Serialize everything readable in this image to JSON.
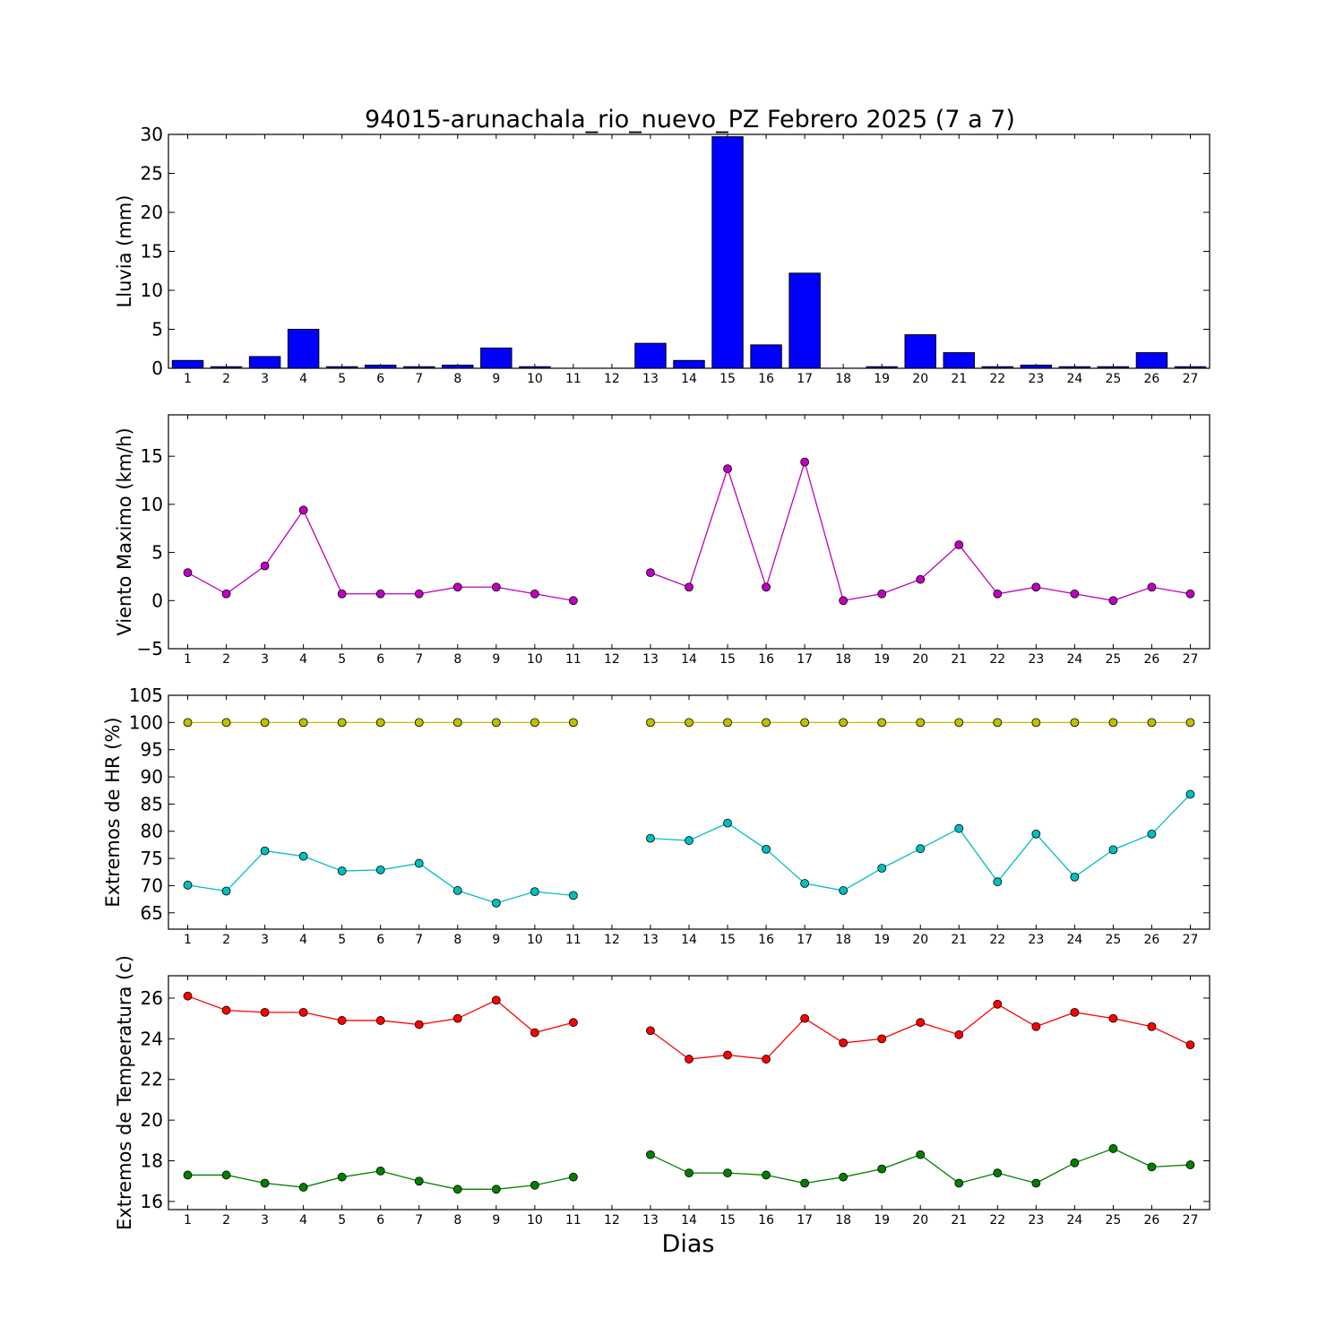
{
  "title": "94015-arunachala_rio_nuevo_PZ Febrero 2025  (7 a 7)",
  "xlabel": "Dias",
  "colors": {
    "rain": "#0000ff",
    "wind": "#bf00bf",
    "hr_max": "#bfbf00",
    "hr_min": "#00bfbf",
    "temp_max": "#ff0000",
    "temp_min": "#008000"
  },
  "chart_data": [
    {
      "type": "bar",
      "ylabel": "Lluvia (mm)",
      "ylim": [
        0,
        30
      ],
      "yticks": [
        0,
        5,
        10,
        15,
        20,
        25,
        30
      ],
      "categories": [
        1,
        2,
        3,
        4,
        5,
        6,
        7,
        8,
        9,
        10,
        11,
        12,
        13,
        14,
        15,
        16,
        17,
        18,
        19,
        20,
        21,
        22,
        23,
        24,
        25,
        26,
        27
      ],
      "values": [
        1.0,
        0.2,
        1.5,
        5.0,
        0.2,
        0.4,
        0.2,
        0.4,
        2.6,
        0.2,
        0,
        0,
        3.2,
        1.0,
        29.7,
        3.0,
        12.2,
        0,
        0.2,
        4.3,
        2.0,
        0.2,
        0.4,
        0.2,
        0.2,
        2.0,
        0.2
      ]
    },
    {
      "type": "line",
      "ylabel": "Viento Maximo (km/h)",
      "ylim": [
        -5,
        19.3
      ],
      "yticks": [
        -5,
        0,
        5,
        10,
        15
      ],
      "x": [
        1,
        2,
        3,
        4,
        5,
        6,
        7,
        8,
        9,
        10,
        11,
        12,
        13,
        14,
        15,
        16,
        17,
        18,
        19,
        20,
        21,
        22,
        23,
        24,
        25,
        26,
        27
      ],
      "series": [
        {
          "values": [
            2.9,
            0.7,
            3.6,
            9.4,
            0.7,
            0.7,
            0.7,
            1.4,
            1.4,
            0.7,
            0.0,
            null,
            2.9,
            1.4,
            13.7,
            1.4,
            14.4,
            0.0,
            0.7,
            2.2,
            5.8,
            0.7,
            1.4,
            0.7,
            0.0,
            1.4,
            0.7
          ]
        }
      ]
    },
    {
      "type": "line",
      "ylabel": "Extremos de HR (%)",
      "ylim": [
        62,
        105
      ],
      "yticks": [
        65,
        70,
        75,
        80,
        85,
        90,
        95,
        100,
        105
      ],
      "x": [
        1,
        2,
        3,
        4,
        5,
        6,
        7,
        8,
        9,
        10,
        11,
        12,
        13,
        14,
        15,
        16,
        17,
        18,
        19,
        20,
        21,
        22,
        23,
        24,
        25,
        26,
        27
      ],
      "series": [
        {
          "values": [
            100,
            100,
            100,
            100,
            100,
            100,
            100,
            100,
            100,
            100,
            100,
            null,
            100,
            100,
            100,
            100,
            100,
            100,
            100,
            100,
            100,
            100,
            100,
            100,
            100,
            100,
            100
          ]
        },
        {
          "values": [
            70.1,
            69.0,
            76.4,
            75.4,
            72.7,
            72.9,
            74.1,
            69.1,
            66.8,
            68.9,
            68.2,
            null,
            78.7,
            78.3,
            81.5,
            76.7,
            70.4,
            69.1,
            73.2,
            76.8,
            80.5,
            70.7,
            79.5,
            71.6,
            76.6,
            79.5,
            86.8
          ]
        }
      ]
    },
    {
      "type": "line",
      "ylabel": "Extremos de Temperatura (c)",
      "ylim": [
        15.6,
        27.1
      ],
      "yticks": [
        16,
        18,
        20,
        22,
        24,
        26
      ],
      "x": [
        1,
        2,
        3,
        4,
        5,
        6,
        7,
        8,
        9,
        10,
        11,
        12,
        13,
        14,
        15,
        16,
        17,
        18,
        19,
        20,
        21,
        22,
        23,
        24,
        25,
        26,
        27
      ],
      "series": [
        {
          "values": [
            26.1,
            25.4,
            25.3,
            25.3,
            24.9,
            24.9,
            24.7,
            25.0,
            25.9,
            24.3,
            24.8,
            null,
            24.4,
            23.0,
            23.2,
            23.0,
            25.0,
            23.8,
            24.0,
            24.8,
            24.2,
            25.7,
            24.6,
            25.3,
            25.0,
            24.6,
            23.7
          ]
        },
        {
          "values": [
            17.3,
            17.3,
            16.9,
            16.7,
            17.2,
            17.5,
            17.0,
            16.6,
            16.6,
            16.8,
            17.2,
            null,
            18.3,
            17.4,
            17.4,
            17.3,
            16.9,
            17.2,
            17.6,
            18.3,
            16.9,
            17.4,
            16.9,
            17.9,
            18.6,
            17.7,
            17.8
          ]
        }
      ]
    }
  ]
}
